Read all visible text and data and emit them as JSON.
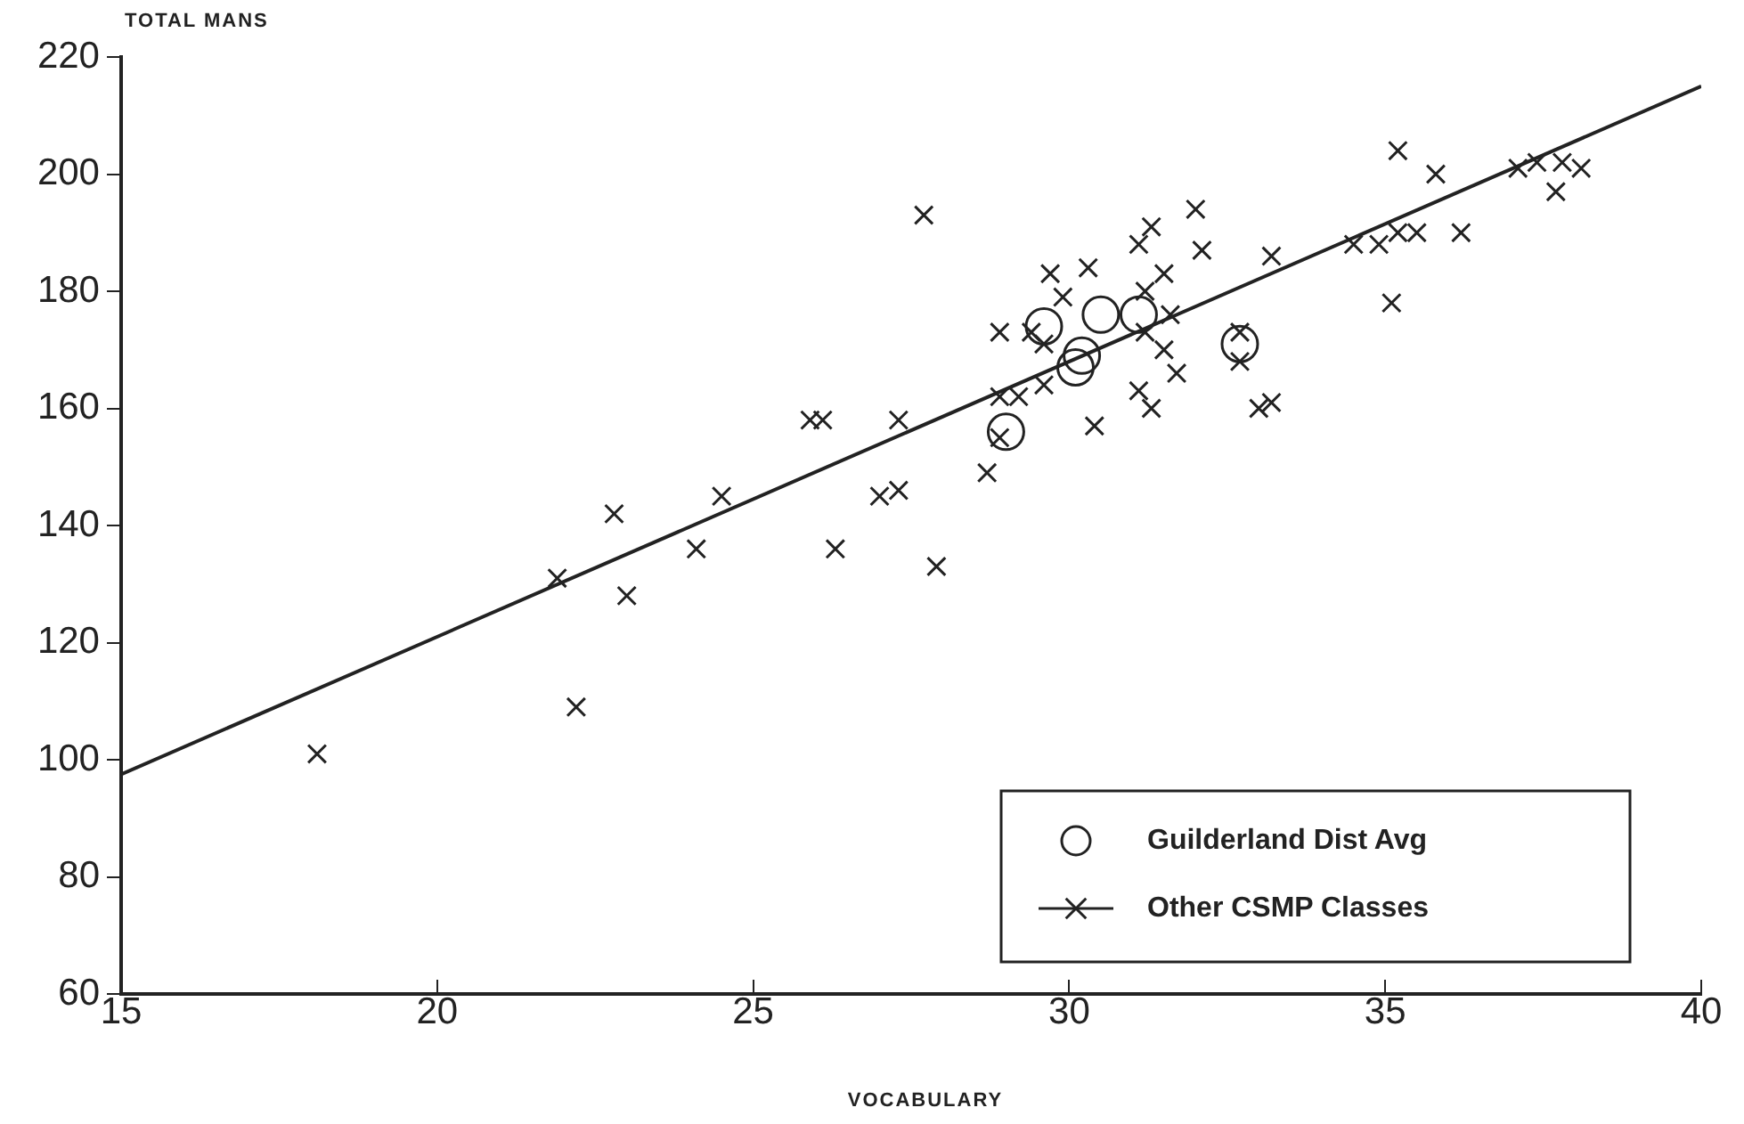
{
  "chart_data": {
    "type": "scatter",
    "xlabel": "VOCABULARY",
    "ylabel": "TOTAL MANS",
    "xlim": [
      15,
      40
    ],
    "xticks": [
      15,
      20,
      25,
      30,
      35,
      40
    ],
    "ylim": [
      60,
      220
    ],
    "yticks": [
      60,
      80,
      100,
      120,
      140,
      160,
      180,
      200,
      220
    ],
    "grid": false,
    "legend": "bottom right",
    "series": [
      {
        "name": "Guilderland Dist Avg",
        "color": "#222222",
        "marker": "circle",
        "x": [
          29.0,
          29.6,
          30.1,
          30.2,
          30.5,
          31.1,
          32.7
        ],
        "values": [
          156,
          174,
          167,
          169,
          176,
          176,
          171
        ]
      },
      {
        "name": "Other CSMP Classes",
        "color": "#222222",
        "marker": "cross",
        "x": [
          18.1,
          21.9,
          22.2,
          22.8,
          23.0,
          24.1,
          24.5,
          25.9,
          26.1,
          26.3,
          27.0,
          27.3,
          27.3,
          27.7,
          27.9,
          28.7,
          28.9,
          28.9,
          28.9,
          29.2,
          29.4,
          29.6,
          29.6,
          29.7,
          29.9,
          30.3,
          30.4,
          31.1,
          31.3,
          32.0,
          32.1,
          31.5,
          31.2,
          31.6,
          31.2,
          31.5,
          31.7,
          31.1,
          31.3,
          32.7,
          32.7,
          33.0,
          33.2,
          33.2,
          34.5,
          34.9,
          35.2,
          35.5,
          36.2,
          35.1,
          35.2,
          35.8,
          37.1,
          37.4,
          37.7,
          37.8,
          38.1
        ],
        "values": [
          101,
          131,
          109,
          142,
          128,
          136,
          145,
          158,
          158,
          136,
          145,
          146,
          158,
          193,
          133,
          149,
          155,
          162,
          173,
          162,
          173,
          171,
          164,
          183,
          179,
          184,
          157,
          188,
          191,
          194,
          187,
          183,
          180,
          176,
          173,
          170,
          166,
          163,
          160,
          173,
          168,
          160,
          161,
          186,
          188,
          188,
          190,
          190,
          190,
          178,
          204,
          200,
          201,
          202,
          197,
          202,
          201
        ]
      },
      {
        "type": "line",
        "color": "#222222",
        "marker": "none",
        "x": [
          15,
          40
        ],
        "values": [
          97.5,
          215
        ]
      }
    ]
  }
}
